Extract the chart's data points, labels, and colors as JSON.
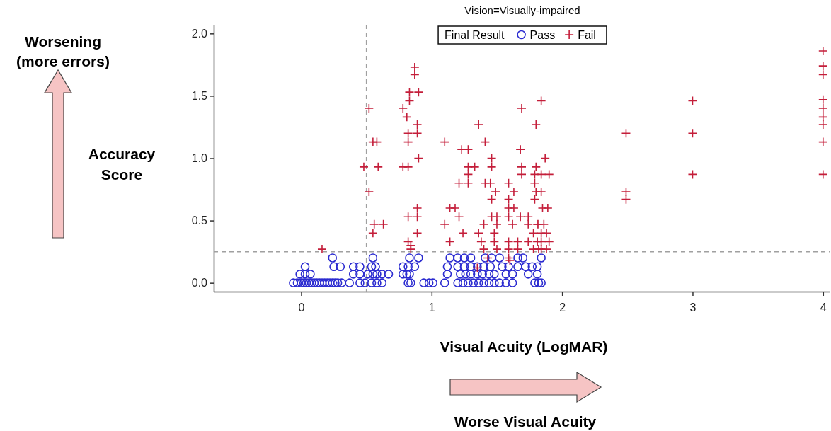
{
  "chart_data": {
    "type": "scatter",
    "title": "Vision=Visually-impaired",
    "xlabel": "Visual Acuity (LogMAR)",
    "ylabel": "Accuracy Score",
    "annotations": [
      "Worsening (more errors)",
      "Worse Visual Acuity"
    ],
    "legend_title": "Final Result",
    "legend": "top",
    "xlim": [
      -0.67,
      4.05
    ],
    "ylim": [
      -0.07,
      2.07
    ],
    "xticks": [
      0,
      1,
      2,
      3,
      4
    ],
    "yticks": [
      {
        "value": 0,
        "label": "0.0"
      },
      {
        "value": 0.5,
        "label": "0.5"
      },
      {
        "value": 1,
        "label": "1.0"
      },
      {
        "value": 1.5,
        "label": "1.5"
      },
      {
        "value": 2,
        "label": "2.0"
      }
    ],
    "ref_lines": [
      {
        "axis": "x",
        "value": 0.5,
        "color": "#a0a0a0",
        "line_style": "dashed"
      },
      {
        "axis": "y",
        "value": 0.25,
        "color": "#a0a0a0",
        "line_style": "dashed"
      }
    ],
    "series": [
      {
        "name": "Pass",
        "color": "#2b2bd0",
        "marker": "circle",
        "x": [
          -0.06,
          -0.03,
          0,
          0.02,
          0.04,
          0.06,
          0.08,
          0.1,
          0.12,
          0.14,
          0.16,
          0.18,
          0.2,
          0.22,
          0.24,
          0.26,
          0.28,
          0.31,
          0.37,
          0.45,
          0.49,
          0.54,
          0.58,
          0.62,
          0.82,
          0.84,
          0.94,
          0.98,
          1.01,
          1.1,
          1.2,
          1.24,
          1.28,
          1.32,
          1.36,
          1.4,
          1.44,
          1.48,
          1.52,
          1.57,
          1.62,
          1.79,
          1.82,
          1.84,
          -0.01,
          0.03,
          0.07,
          0.4,
          0.45,
          0.51,
          0.55,
          0.58,
          0.62,
          0.67,
          0.78,
          0.81,
          0.83,
          1.12,
          1.22,
          1.26,
          1.3,
          1.35,
          1.39,
          1.44,
          1.48,
          1.57,
          1.62,
          1.74,
          1.81,
          0.03,
          0.25,
          0.3,
          0.4,
          0.45,
          0.54,
          0.57,
          0.78,
          0.82,
          0.87,
          1.12,
          1.2,
          1.25,
          1.3,
          1.35,
          1.4,
          1.45,
          1.54,
          1.59,
          1.66,
          1.72,
          1.77,
          1.81,
          0.24,
          0.55,
          0.83,
          0.9,
          1.14,
          1.2,
          1.25,
          1.3,
          1.41,
          1.46,
          1.52,
          1.66,
          1.7,
          1.84
        ],
        "values": [
          0,
          0,
          0,
          0,
          0,
          0,
          0,
          0,
          0,
          0,
          0,
          0,
          0,
          0,
          0,
          0,
          0,
          0,
          0,
          0,
          0,
          0,
          0,
          0,
          0,
          0,
          0,
          0,
          0,
          0,
          0,
          0,
          0,
          0,
          0,
          0,
          0,
          0,
          0,
          0,
          0,
          0,
          0,
          0,
          0.07,
          0.07,
          0.07,
          0.07,
          0.07,
          0.07,
          0.07,
          0.07,
          0.07,
          0.07,
          0.07,
          0.07,
          0.07,
          0.07,
          0.07,
          0.07,
          0.07,
          0.07,
          0.07,
          0.07,
          0.07,
          0.07,
          0.07,
          0.07,
          0.07,
          0.13,
          0.13,
          0.13,
          0.13,
          0.13,
          0.13,
          0.13,
          0.13,
          0.13,
          0.13,
          0.13,
          0.13,
          0.13,
          0.13,
          0.13,
          0.13,
          0.13,
          0.13,
          0.13,
          0.13,
          0.13,
          0.13,
          0.13,
          0.2,
          0.2,
          0.2,
          0.2,
          0.2,
          0.2,
          0.2,
          0.2,
          0.2,
          0.2,
          0.2,
          0.2,
          0.2,
          0.2
        ]
      },
      {
        "name": "Fail",
        "color": "#c41e3a",
        "marker": "cross",
        "x": [
          0.52,
          0.55,
          0.58,
          0.48,
          0.59,
          0.52,
          0.56,
          0.63,
          0.55,
          0.87,
          0.87,
          0.83,
          0.9,
          0.83,
          0.78,
          0.81,
          0.89,
          0.82,
          0.89,
          0.82,
          0.9,
          0.78,
          0.82,
          0.89,
          0.82,
          0.89,
          0.89,
          0.82,
          0.84,
          0.84,
          1.1,
          1.23,
          1.28,
          1.28,
          1.33,
          1.28,
          1.21,
          1.28,
          1.14,
          1.18,
          1.21,
          1.1,
          1.24,
          1.14,
          1.36,
          1.41,
          1.46,
          1.46,
          1.41,
          1.45,
          1.49,
          1.46,
          1.46,
          1.5,
          1.4,
          1.5,
          1.36,
          1.48,
          1.38,
          1.48,
          1.4,
          1.5,
          1.43,
          1.59,
          1.63,
          1.59,
          1.59,
          1.63,
          1.59,
          1.62,
          1.59,
          1.66,
          1.59,
          1.66,
          1.59,
          1.69,
          1.68,
          1.69,
          1.69,
          1.68,
          1.74,
          1.74,
          1.81,
          1.78,
          1.74,
          1.81,
          1.78,
          1.84,
          1.84,
          1.8,
          1.87,
          1.8,
          1.79,
          1.84,
          1.9,
          1.79,
          1.8,
          1.84,
          1.79,
          1.85,
          1.89,
          1.82,
          1.86,
          1.84,
          1.88,
          1.84,
          1.9,
          1.82,
          1.88,
          0.16,
          1.35,
          1.6,
          2.49,
          2.49,
          2.49,
          3,
          3,
          3,
          4,
          4,
          4,
          4,
          4,
          4,
          4,
          4,
          4
        ],
        "values": [
          1.4,
          1.13,
          1.13,
          0.93,
          0.93,
          0.73,
          0.47,
          0.47,
          0.4,
          1.73,
          1.67,
          1.53,
          1.53,
          1.46,
          1.4,
          1.33,
          1.27,
          1.2,
          1.2,
          1.13,
          1.0,
          0.93,
          0.93,
          0.6,
          0.53,
          0.53,
          0.4,
          0.33,
          0.3,
          0.27,
          1.13,
          1.07,
          1.07,
          0.93,
          0.93,
          0.87,
          0.8,
          0.8,
          0.6,
          0.6,
          0.53,
          0.47,
          0.4,
          0.33,
          1.27,
          1.13,
          1.0,
          0.93,
          0.8,
          0.8,
          0.73,
          0.67,
          0.53,
          0.53,
          0.47,
          0.47,
          0.4,
          0.4,
          0.33,
          0.33,
          0.27,
          0.27,
          0.2,
          0.8,
          0.73,
          0.67,
          0.6,
          0.6,
          0.53,
          0.47,
          0.33,
          0.33,
          0.27,
          0.27,
          0.2,
          1.4,
          1.07,
          0.93,
          0.87,
          0.53,
          0.53,
          0.47,
          0.47,
          0.4,
          0.33,
          0.33,
          0.27,
          0.27,
          1.46,
          1.27,
          1.0,
          0.93,
          0.87,
          0.87,
          0.87,
          0.8,
          0.73,
          0.73,
          0.67,
          0.6,
          0.6,
          0.47,
          0.47,
          0.4,
          0.4,
          0.33,
          0.33,
          0.27,
          0.27,
          0.27,
          0.12,
          0.18,
          1.2,
          0.73,
          0.67,
          1.46,
          1.2,
          0.87,
          1.86,
          1.74,
          1.67,
          1.47,
          1.4,
          1.33,
          1.27,
          1.13,
          0.87
        ]
      }
    ]
  }
}
